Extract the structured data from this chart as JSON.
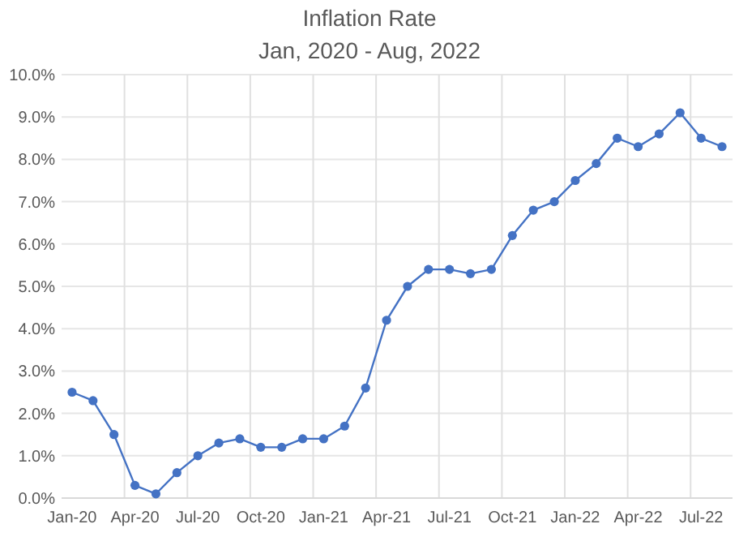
{
  "chart_data": {
    "type": "line",
    "title": "Inflation Rate",
    "subtitle": "Jan, 2020 - Aug, 2022",
    "categories": [
      "Jan-20",
      null,
      null,
      "Apr-20",
      null,
      null,
      "Jul-20",
      null,
      null,
      "Oct-20",
      null,
      null,
      "Jan-21",
      null,
      null,
      "Apr-21",
      null,
      null,
      "Jul-21",
      null,
      null,
      "Oct-21",
      null,
      null,
      "Jan-22",
      null,
      null,
      "Apr-22",
      null,
      null,
      "Jul-22",
      null
    ],
    "series": [
      {
        "color": "#4472c4",
        "values": [
          2.5,
          2.3,
          1.5,
          0.3,
          0.1,
          0.6,
          1.0,
          1.3,
          1.4,
          1.2,
          1.2,
          1.4,
          1.4,
          1.7,
          2.6,
          4.2,
          5.0,
          5.4,
          5.4,
          5.3,
          5.4,
          6.2,
          6.8,
          7.0,
          7.5,
          7.9,
          8.5,
          8.3,
          8.6,
          9.1,
          8.5,
          8.3
        ]
      }
    ],
    "ylim": [
      0,
      10
    ],
    "yticks": [
      {
        "value": 0,
        "label": "0.0%"
      },
      {
        "value": 1,
        "label": "1.0%"
      },
      {
        "value": 2,
        "label": "2.0%"
      },
      {
        "value": 3,
        "label": "3.0%"
      },
      {
        "value": 4,
        "label": "4.0%"
      },
      {
        "value": 5,
        "label": "5.0%"
      },
      {
        "value": 6,
        "label": "6.0%"
      },
      {
        "value": 7,
        "label": "7.0%"
      },
      {
        "value": 8,
        "label": "8.0%"
      },
      {
        "value": 9,
        "label": "9.0%"
      },
      {
        "value": 10,
        "label": "10.0%"
      }
    ],
    "grid": true,
    "marker": "circle",
    "line_style": "solid"
  }
}
